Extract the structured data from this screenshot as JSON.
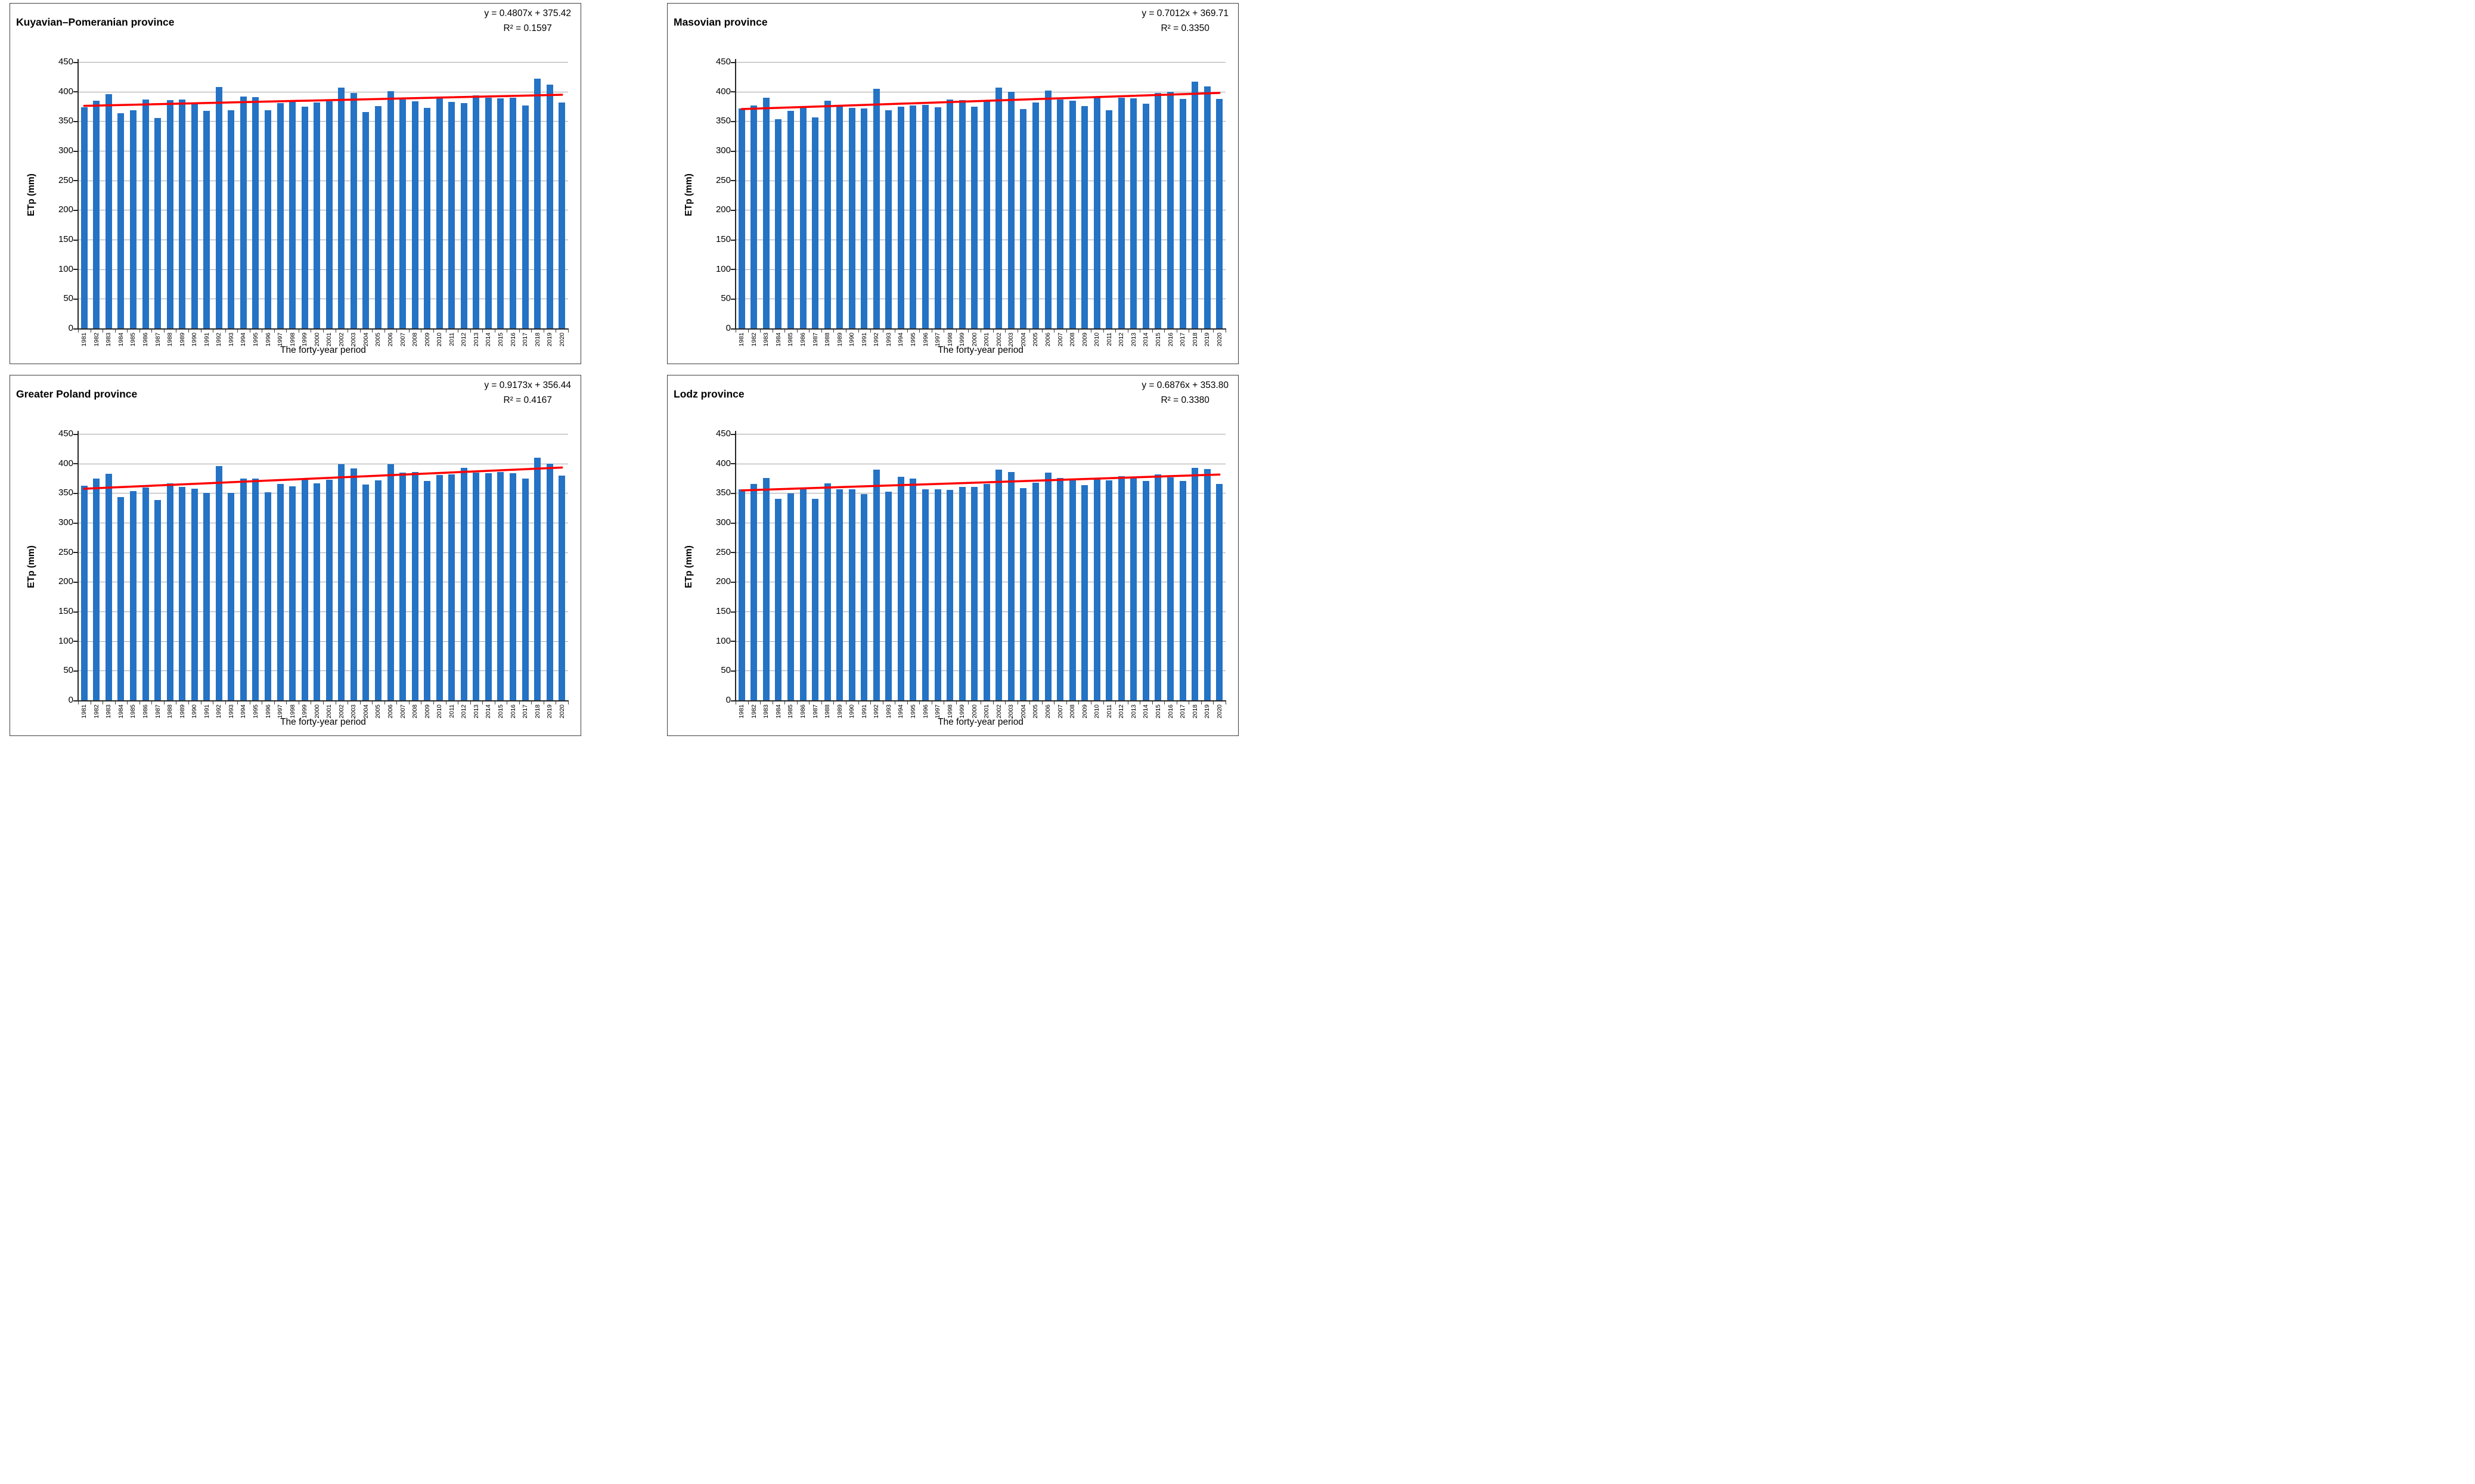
{
  "figure": {
    "background": "#FFFFFF",
    "colors": {
      "bar": "#2473C5",
      "trend": "#FF0000",
      "gridline": "#A6A6A6",
      "axis": "#262626",
      "panel_border": "#3F3F3F",
      "text": "#000000"
    }
  },
  "chart_data": [
    {
      "type": "bar",
      "title": "Kuyavian–Pomeranian province",
      "equation_label": "y = 0.4807x + 375.42",
      "r2_label": "R² = 0.1597",
      "trendline": {
        "slope": 0.4807,
        "intercept": 375.42
      },
      "xlabel": "The forty-year period",
      "ylabel": "ETp (mm)",
      "ylim": [
        0,
        450
      ],
      "ytick_step": 50,
      "grid": true,
      "legend": false,
      "categories": [
        1981,
        1982,
        1983,
        1984,
        1985,
        1986,
        1987,
        1988,
        1989,
        1990,
        1991,
        1992,
        1993,
        1994,
        1995,
        1996,
        1997,
        1998,
        1999,
        2000,
        2001,
        2002,
        2003,
        2004,
        2005,
        2006,
        2007,
        2008,
        2009,
        2010,
        2011,
        2012,
        2013,
        2014,
        2015,
        2016,
        2017,
        2018,
        2019,
        2020
      ],
      "values": [
        373,
        385,
        396,
        363,
        368,
        387,
        355,
        386,
        387,
        379,
        367,
        408,
        368,
        392,
        391,
        368,
        381,
        383,
        375,
        382,
        384,
        407,
        398,
        365,
        376,
        401,
        387,
        384,
        372,
        392,
        383,
        381,
        394,
        390,
        389,
        390,
        377,
        422,
        412,
        382
      ]
    },
    {
      "type": "bar",
      "title": "Masovian province",
      "equation_label": "y = 0.7012x + 369.71",
      "r2_label": "R² = 0.3350",
      "trendline": {
        "slope": 0.7012,
        "intercept": 369.71
      },
      "xlabel": "The forty-year period",
      "ylabel": "ETp (mm)",
      "ylim": [
        0,
        450
      ],
      "ytick_step": 50,
      "grid": true,
      "legend": false,
      "categories": [
        1981,
        1982,
        1983,
        1984,
        1985,
        1986,
        1987,
        1988,
        1989,
        1990,
        1991,
        1992,
        1993,
        1994,
        1995,
        1996,
        1997,
        1998,
        1999,
        2000,
        2001,
        2002,
        2003,
        2004,
        2005,
        2006,
        2007,
        2008,
        2009,
        2010,
        2011,
        2012,
        2013,
        2014,
        2015,
        2016,
        2017,
        2018,
        2019,
        2020
      ],
      "values": [
        371,
        377,
        390,
        353,
        367,
        376,
        356,
        385,
        375,
        372,
        371,
        405,
        368,
        375,
        377,
        378,
        373,
        387,
        386,
        375,
        386,
        407,
        400,
        370,
        382,
        402,
        387,
        385,
        376,
        391,
        368,
        390,
        389,
        380,
        398,
        400,
        388,
        417,
        409,
        388
      ]
    },
    {
      "type": "bar",
      "title": "Greater Poland province",
      "equation_label": "y = 0.9173x + 356.44",
      "r2_label": "R² = 0.4167",
      "trendline": {
        "slope": 0.9173,
        "intercept": 356.44
      },
      "xlabel": "The forty-year period",
      "ylabel": "ETp (mm)",
      "ylim": [
        0,
        450
      ],
      "ytick_step": 50,
      "grid": true,
      "legend": false,
      "categories": [
        1981,
        1982,
        1983,
        1984,
        1985,
        1986,
        1987,
        1988,
        1989,
        1990,
        1991,
        1992,
        1993,
        1994,
        1995,
        1996,
        1997,
        1998,
        1999,
        2000,
        2001,
        2002,
        2003,
        2004,
        2005,
        2006,
        2007,
        2008,
        2009,
        2010,
        2011,
        2012,
        2013,
        2014,
        2015,
        2016,
        2017,
        2018,
        2019,
        2020
      ],
      "values": [
        362,
        374,
        383,
        343,
        353,
        359,
        338,
        366,
        360,
        357,
        350,
        396,
        350,
        375,
        374,
        351,
        365,
        361,
        372,
        366,
        372,
        399,
        392,
        364,
        371,
        399,
        385,
        386,
        370,
        381,
        382,
        393,
        385,
        384,
        386,
        384,
        375,
        410,
        400,
        380
      ]
    },
    {
      "type": "bar",
      "title": "Lodz province",
      "equation_label": "y = 0.6876x + 353.80",
      "r2_label": "R² = 0.3380",
      "trendline": {
        "slope": 0.6876,
        "intercept": 353.8
      },
      "xlabel": "The forty-year period",
      "ylabel": "ETp (mm)",
      "ylim": [
        0,
        450
      ],
      "ytick_step": 50,
      "grid": true,
      "legend": false,
      "categories": [
        1981,
        1982,
        1983,
        1984,
        1985,
        1986,
        1987,
        1988,
        1989,
        1990,
        1991,
        1992,
        1993,
        1994,
        1995,
        1996,
        1997,
        1998,
        1999,
        2000,
        2001,
        2002,
        2003,
        2004,
        2005,
        2006,
        2007,
        2008,
        2009,
        2010,
        2011,
        2012,
        2013,
        2014,
        2015,
        2016,
        2017,
        2018,
        2019,
        2020
      ],
      "values": [
        356,
        365,
        376,
        340,
        349,
        357,
        340,
        366,
        356,
        356,
        348,
        390,
        352,
        378,
        374,
        356,
        356,
        355,
        360,
        360,
        365,
        390,
        386,
        358,
        367,
        385,
        376,
        372,
        363,
        373,
        371,
        379,
        376,
        370,
        382,
        377,
        370,
        393,
        391,
        365
      ]
    }
  ]
}
